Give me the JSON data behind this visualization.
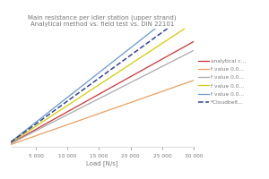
{
  "title1": "Main resistance per idler station (upper strand)",
  "title2": "Analytical method vs. field test vs. DIN 22101",
  "xlabel": "Load [N/s]",
  "xlim": [
    1000,
    30000
  ],
  "ylim": [
    0,
    160
  ],
  "x_ticks": [
    5000,
    10000,
    15000,
    20000,
    25000,
    30000
  ],
  "x_tick_labels": [
    "5 000",
    "10 000",
    "15 000",
    "20 000",
    "25 000",
    "30 000"
  ],
  "lines": [
    {
      "label": "analytical c...",
      "color": "#cc3333",
      "style": "-",
      "lw": 0.9,
      "slope": 0.00475,
      "intercept": 0
    },
    {
      "label": "f value 0.0...",
      "color": "#e8a060",
      "style": "-",
      "lw": 0.9,
      "slope": 0.003,
      "intercept": 0
    },
    {
      "label": "f value 0.0...",
      "color": "#aaaaaa",
      "style": "-",
      "lw": 0.9,
      "slope": 0.00435,
      "intercept": 0
    },
    {
      "label": "f value 0.0...",
      "color": "#d4cc00",
      "style": "-",
      "lw": 0.9,
      "slope": 0.0056,
      "intercept": 0
    },
    {
      "label": "f value 0.0...",
      "color": "#6699cc",
      "style": "-",
      "lw": 0.9,
      "slope": 0.0067,
      "intercept": 0
    },
    {
      "label": "*Cloudbelt...",
      "color": "#334499",
      "style": "--",
      "lw": 1.1,
      "slope": 0.0062,
      "intercept": 0
    }
  ],
  "background_color": "#ffffff",
  "grid_color": "#e0e0e0",
  "title_fontsize": 5.0,
  "subtitle_fontsize": 4.5,
  "legend_fontsize": 4.2,
  "tick_fontsize": 4.2,
  "xlabel_fontsize": 5.0
}
